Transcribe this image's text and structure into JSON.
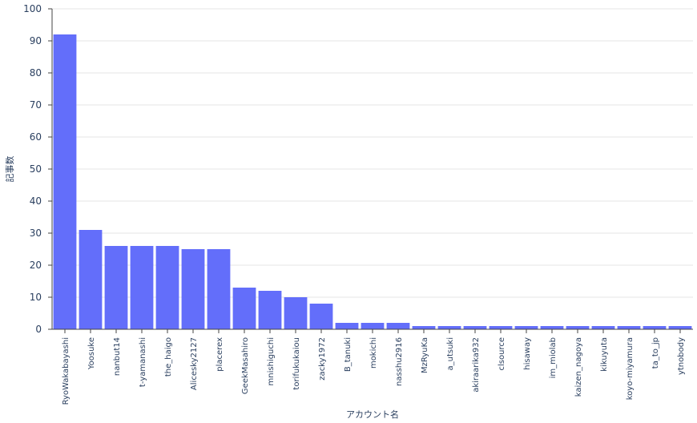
{
  "chart_data": {
    "type": "bar",
    "xlabel": "アカウント名",
    "ylabel": "記事数",
    "ylim": [
      0,
      100
    ],
    "yticks": [
      0,
      10,
      20,
      30,
      40,
      50,
      60,
      70,
      80,
      90,
      100
    ],
    "grid": true,
    "bar_color": "#636efa",
    "categories": [
      "RyoWakabayashi",
      "Yoosuke",
      "nanbut14",
      "t-yamanashi",
      "the_haigo",
      "Alicesky2127",
      "placerex",
      "GeekMasahiro",
      "mnishiguchi",
      "torifukukaiou",
      "zacky1972",
      "B_tanuki",
      "mokichi",
      "nasshu2916",
      "MzRyuKa",
      "a_utsuki",
      "akiraarika932",
      "clsource",
      "hisaway",
      "im_miolab",
      "kaizen_nagoya",
      "kikuyuta",
      "koyo-miyamura",
      "ta_to_jp",
      "ytnobody"
    ],
    "values": [
      92,
      31,
      26,
      26,
      26,
      25,
      25,
      13,
      12,
      10,
      8,
      2,
      2,
      2,
      1,
      1,
      1,
      1,
      1,
      1,
      1,
      1,
      1,
      1,
      1
    ]
  }
}
